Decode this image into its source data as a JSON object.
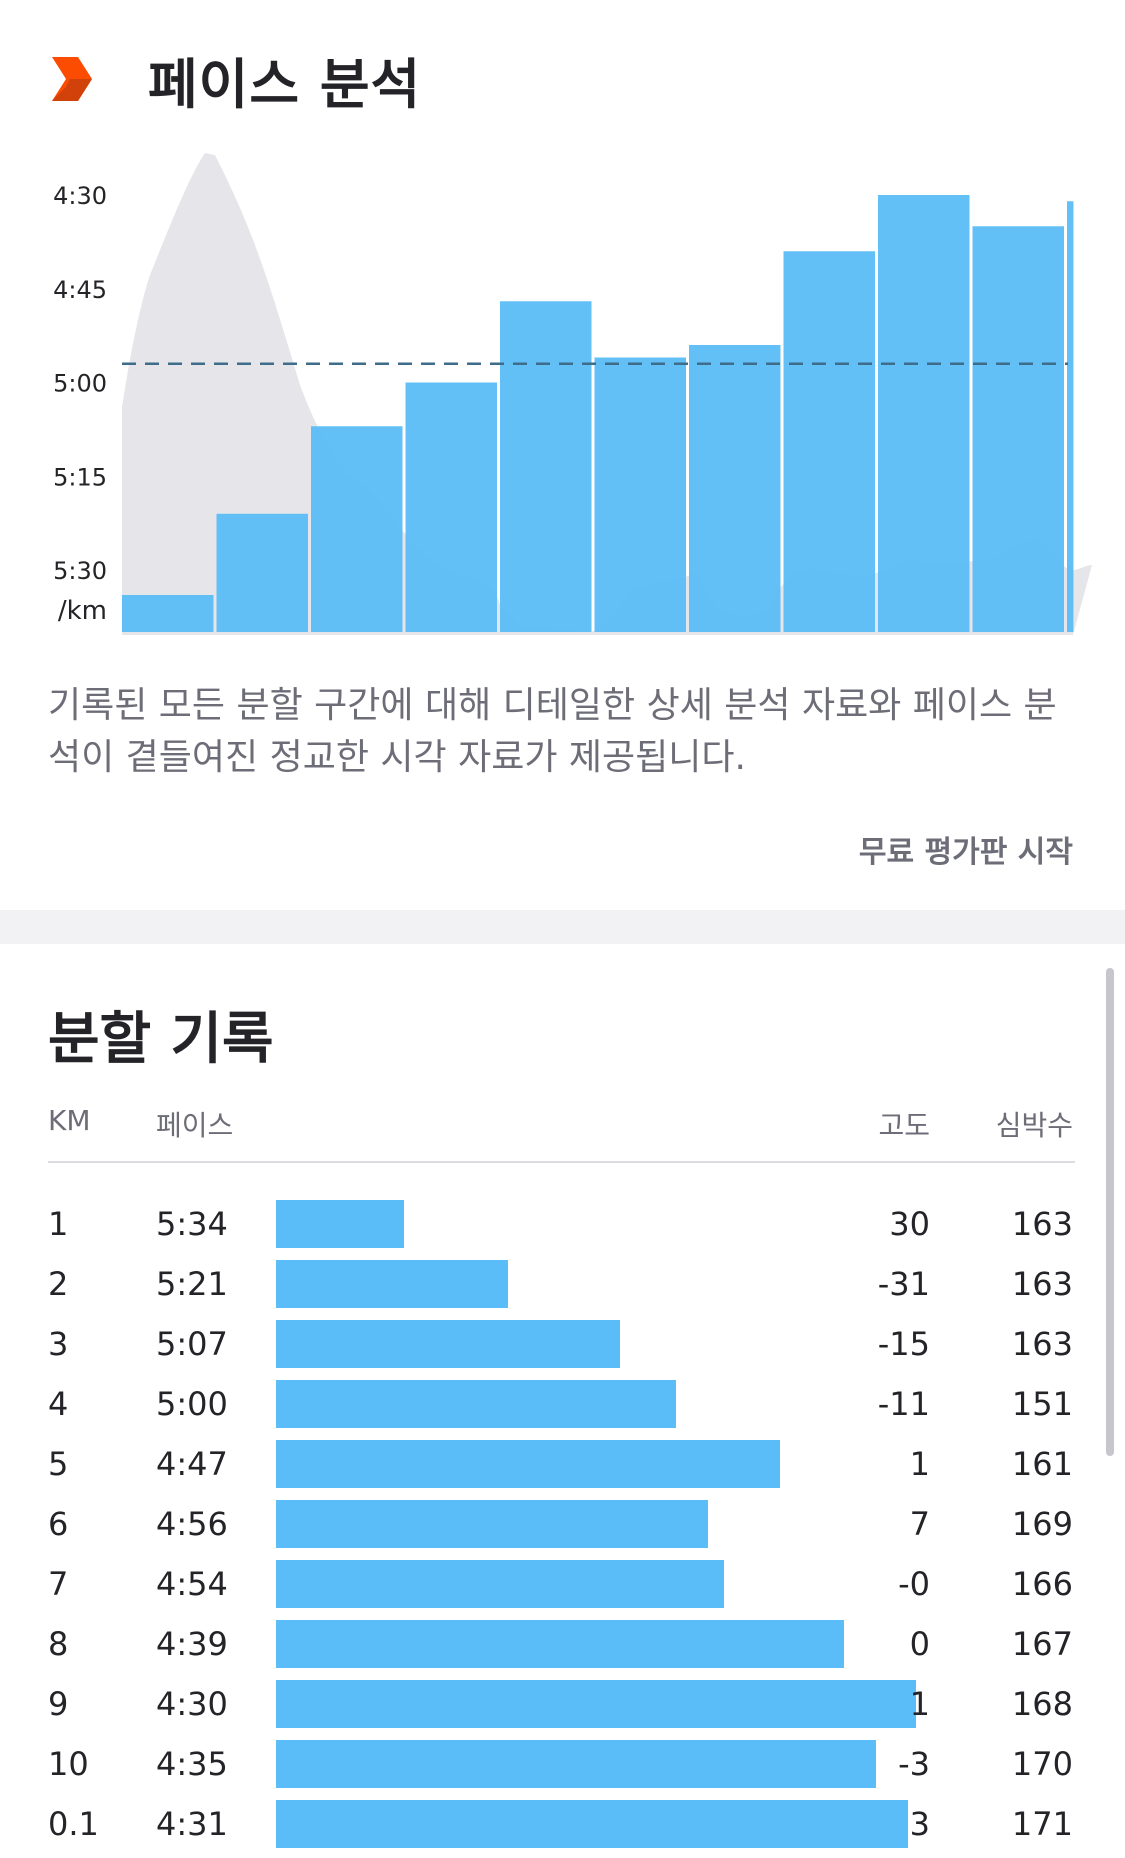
{
  "pace_analysis": {
    "title": "페이스 분석",
    "description": "기록된 모든 분할 구간에 대해 디테일한 상세 분석 자료와 페이스 분석이 곁들여진 정교한 시각 자료가 제공됩니다.",
    "trial_button": "무료 평가판 시작"
  },
  "chart_data": {
    "type": "bar",
    "y_ticks": [
      "4:30",
      "4:45",
      "5:00",
      "5:15",
      "5:30"
    ],
    "y_unit": "/km",
    "y_ticks_seconds": [
      270,
      285,
      300,
      315,
      330
    ],
    "ylim_seconds": [
      340,
      270
    ],
    "categories": [
      "1",
      "2",
      "3",
      "4",
      "5",
      "6",
      "7",
      "8",
      "9",
      "10",
      "0.1"
    ],
    "values_seconds": [
      334,
      321,
      307,
      300,
      287,
      296,
      294,
      279,
      270,
      275,
      271
    ],
    "category_widths_km": [
      1,
      1,
      1,
      1,
      1,
      1,
      1,
      1,
      1,
      1,
      0.1
    ],
    "average_pace_seconds": 297,
    "average_line": "dashed",
    "background_series": "elevation",
    "grid": false,
    "colors": {
      "bar": "#5bbdf7",
      "elevation": "#e6e6ea",
      "average_line": "#3d6d8a"
    }
  },
  "splits": {
    "title": "분할 기록",
    "headers": {
      "km": "KM",
      "pace": "페이스",
      "elevation": "고도",
      "heart_rate": "심박수"
    },
    "rows": [
      {
        "km": "1",
        "pace": "5:34",
        "pace_seconds": 334,
        "elevation": "30",
        "hr": "163"
      },
      {
        "km": "2",
        "pace": "5:21",
        "pace_seconds": 321,
        "elevation": "-31",
        "hr": "163"
      },
      {
        "km": "3",
        "pace": "5:07",
        "pace_seconds": 307,
        "elevation": "-15",
        "hr": "163"
      },
      {
        "km": "4",
        "pace": "5:00",
        "pace_seconds": 300,
        "elevation": "-11",
        "hr": "151"
      },
      {
        "km": "5",
        "pace": "4:47",
        "pace_seconds": 287,
        "elevation": "1",
        "hr": "161"
      },
      {
        "km": "6",
        "pace": "4:56",
        "pace_seconds": 296,
        "elevation": "7",
        "hr": "169"
      },
      {
        "km": "7",
        "pace": "4:54",
        "pace_seconds": 294,
        "elevation": "-0",
        "hr": "166"
      },
      {
        "km": "8",
        "pace": "4:39",
        "pace_seconds": 279,
        "elevation": "0",
        "hr": "167"
      },
      {
        "km": "9",
        "pace": "4:30",
        "pace_seconds": 270,
        "elevation": "1",
        "hr": "168"
      },
      {
        "km": "10",
        "pace": "4:35",
        "pace_seconds": 275,
        "elevation": "-3",
        "hr": "170"
      },
      {
        "km": "0.1",
        "pace": "4:31",
        "pace_seconds": 271,
        "elevation": "3",
        "hr": "171"
      }
    ]
  }
}
